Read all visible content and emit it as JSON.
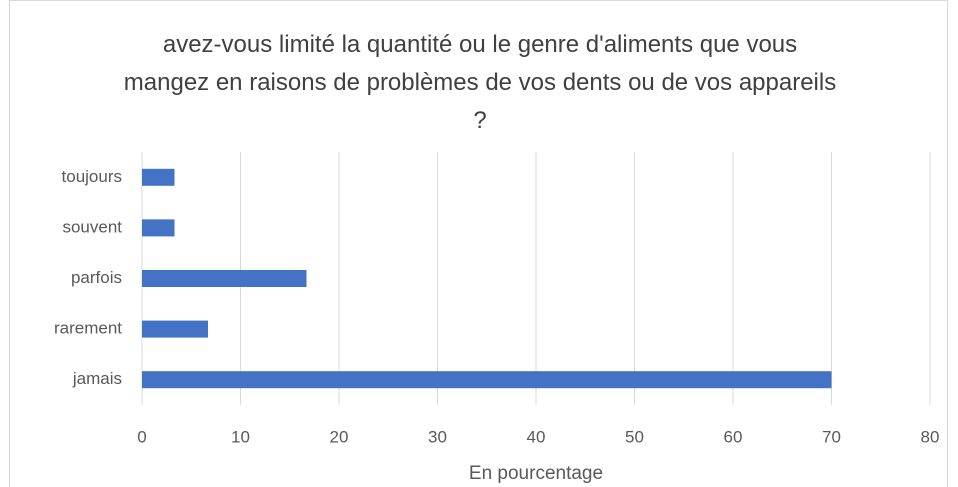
{
  "chart_data": {
    "type": "bar",
    "orientation": "horizontal",
    "title": "avez-vous limité la quantité ou le genre d'aliments que vous mangez en raisons de problèmes de vos dents ou de vos appareils ?",
    "x_label": "En pourcentage",
    "categories": [
      "toujours",
      "souvent",
      "parfois",
      "rarement",
      "jamais"
    ],
    "values": [
      3.3,
      3.3,
      16.7,
      6.7,
      70
    ],
    "color": "#4472c4",
    "xlim": [
      0,
      80
    ],
    "xticks": [
      0,
      10,
      20,
      30,
      40,
      50,
      60,
      70,
      80
    ],
    "grid": true
  }
}
